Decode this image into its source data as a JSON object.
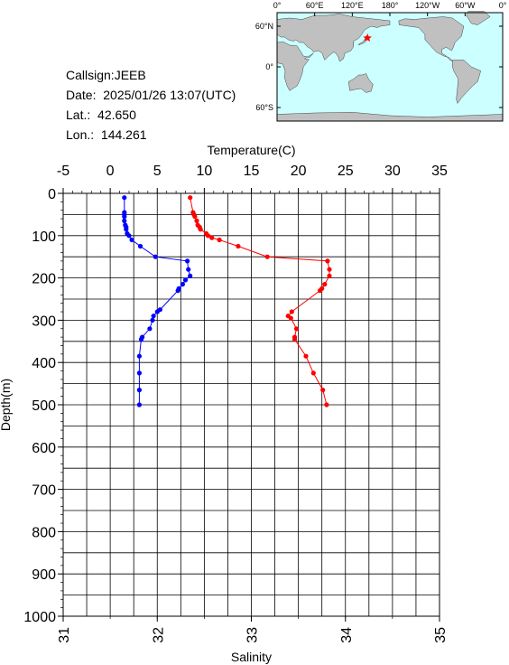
{
  "info": {
    "callsign": "Callsign:JEEB",
    "date_label": "Date:",
    "date_value": "2025/01/26 13:07(UTC)",
    "lat_label": "Lat.:",
    "lat_value": "42.650",
    "lon_label": "Lon.:",
    "lon_value": "144.261"
  },
  "map": {
    "top_labels": [
      "0°",
      "60°E",
      "120°E",
      "180°",
      "120°W",
      "60°W",
      "0°"
    ],
    "left_labels": [
      "60°N",
      "0°",
      "60°S"
    ],
    "ocean_color": "#ccffff",
    "land_color": "#c0c0c0",
    "marker_color": "#ff0000",
    "marker_lat": 42.65,
    "marker_lon": 144.261
  },
  "chart_data": {
    "type": "scatter",
    "top_axis": {
      "title": "Temperature(C)",
      "range": [
        -5,
        35
      ],
      "ticks": [
        "-5",
        "0",
        "5",
        "10",
        "15",
        "20",
        "25",
        "30",
        "35"
      ]
    },
    "bottom_axis": {
      "title": "Salinity",
      "range": [
        31,
        35
      ],
      "ticks": [
        "31",
        "32",
        "33",
        "34",
        "35"
      ]
    },
    "left_axis": {
      "title": "Depth(m)",
      "range": [
        0,
        1000
      ],
      "inverted": true,
      "ticks": [
        "0",
        "100",
        "200",
        "300",
        "400",
        "500",
        "600",
        "700",
        "800",
        "900",
        "1000"
      ]
    },
    "grid": true,
    "temperature_color": "#ff0000",
    "salinity_color": "#0000ff",
    "temperature": {
      "depth": [
        10,
        45,
        50,
        55,
        65,
        75,
        80,
        85,
        95,
        100,
        105,
        110,
        125,
        150,
        160,
        180,
        195,
        215,
        225,
        230,
        280,
        290,
        295,
        320,
        340,
        345,
        385,
        425,
        465,
        500
      ],
      "value": [
        8.5,
        8.8,
        8.9,
        9.0,
        9.2,
        9.3,
        9.5,
        9.6,
        10.2,
        10.4,
        10.8,
        11.6,
        13.6,
        16.7,
        23.1,
        23.3,
        23.3,
        22.8,
        22.5,
        22.3,
        19.3,
        18.9,
        19.2,
        19.8,
        19.6,
        19.6,
        20.8,
        21.6,
        22.6,
        23.0
      ]
    },
    "salinity": {
      "depth": [
        10,
        45,
        50,
        55,
        65,
        75,
        80,
        85,
        95,
        100,
        110,
        125,
        150,
        160,
        180,
        195,
        205,
        215,
        225,
        230,
        275,
        280,
        290,
        300,
        320,
        340,
        345,
        385,
        425,
        465,
        500
      ],
      "value": [
        31.65,
        31.65,
        31.65,
        31.65,
        31.65,
        31.66,
        31.67,
        31.67,
        31.68,
        31.7,
        31.73,
        31.82,
        31.98,
        32.32,
        32.33,
        32.35,
        32.3,
        32.27,
        32.23,
        32.22,
        32.03,
        32.0,
        31.96,
        31.95,
        31.92,
        31.84,
        31.83,
        31.81,
        31.81,
        31.81,
        31.81
      ]
    }
  }
}
